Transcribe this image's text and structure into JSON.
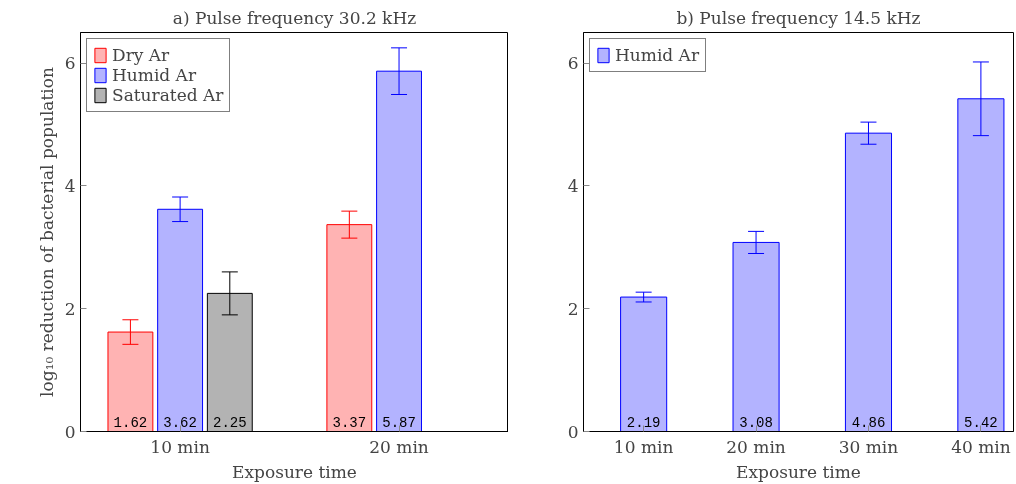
{
  "chart_data": [
    {
      "type": "bar",
      "title": "a) Pulse frequency 30.2 kHz",
      "xlabel": "Exposure time",
      "ylabel": "log₁₀ reduction of bacterial population",
      "categories": [
        "10 min",
        "20 min"
      ],
      "ylim": [
        0,
        6.5
      ],
      "yticks": [
        0,
        2,
        4,
        6
      ],
      "grid": false,
      "legend": "top left",
      "data_labels": true,
      "series": [
        {
          "name": "Dry Ar",
          "color": "#ffb3b3",
          "values": [
            1.62,
            3.37
          ],
          "errors": [
            0.2,
            0.22
          ]
        },
        {
          "name": "Humid Ar",
          "color": "#b3b3ff",
          "values": [
            3.62,
            5.87
          ],
          "errors": [
            0.2,
            0.38
          ]
        },
        {
          "name": "Saturated Ar",
          "color": "#b3b3b3",
          "values": [
            2.25,
            null
          ],
          "errors": [
            0.35,
            null
          ]
        }
      ]
    },
    {
      "type": "bar",
      "title": "b) Pulse frequency 14.5 kHz",
      "xlabel": "Exposure time",
      "categories": [
        "10 min",
        "20 min",
        "30 min",
        "40 min"
      ],
      "ylim": [
        0,
        6.5
      ],
      "yticks": [
        0,
        2,
        4,
        6
      ],
      "grid": false,
      "legend": "top left",
      "data_labels": true,
      "series": [
        {
          "name": "Humid Ar",
          "color": "#b3b3ff",
          "values": [
            2.19,
            3.08,
            4.86,
            5.42
          ],
          "errors": [
            0.08,
            0.18,
            0.18,
            0.6
          ]
        }
      ]
    }
  ]
}
